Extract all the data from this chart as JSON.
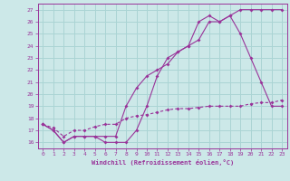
{
  "xlabel": "Windchill (Refroidissement éolien,°C)",
  "bg_color": "#cce8e8",
  "grid_color": "#aad4d4",
  "line_color": "#993399",
  "x_ticks": [
    0,
    1,
    2,
    3,
    4,
    5,
    6,
    7,
    8,
    9,
    10,
    11,
    12,
    13,
    14,
    15,
    16,
    17,
    18,
    19,
    20,
    21,
    22,
    23
  ],
  "y_ticks": [
    16,
    17,
    18,
    19,
    20,
    21,
    22,
    23,
    24,
    25,
    26,
    27
  ],
  "xlim": [
    -0.5,
    23.5
  ],
  "ylim": [
    15.5,
    27.5
  ],
  "line1_x": [
    0,
    1,
    2,
    3,
    4,
    5,
    6,
    7,
    8,
    9,
    10,
    11,
    12,
    13,
    14,
    15,
    16,
    17,
    18,
    19,
    20,
    21,
    22,
    23
  ],
  "line1_y": [
    17.5,
    17.0,
    16.0,
    16.5,
    16.5,
    16.5,
    16.0,
    16.0,
    16.0,
    17.0,
    19.0,
    21.5,
    23.0,
    23.5,
    24.0,
    24.5,
    26.0,
    26.0,
    26.5,
    25.0,
    23.0,
    21.0,
    19.0,
    19.0
  ],
  "line2_x": [
    0,
    1,
    2,
    3,
    4,
    5,
    6,
    7,
    8,
    9,
    10,
    11,
    12,
    13,
    14,
    15,
    16,
    17,
    18,
    19,
    20,
    21,
    22,
    23
  ],
  "line2_y": [
    17.5,
    17.0,
    16.0,
    16.5,
    16.5,
    16.5,
    16.5,
    16.5,
    19.0,
    20.5,
    21.5,
    22.0,
    22.5,
    23.5,
    24.0,
    26.0,
    26.5,
    26.0,
    26.5,
    27.0,
    27.0,
    27.0,
    27.0,
    27.0
  ],
  "line3_x": [
    0,
    1,
    2,
    3,
    4,
    5,
    6,
    7,
    8,
    9,
    10,
    11,
    12,
    13,
    14,
    15,
    16,
    17,
    18,
    19,
    20,
    21,
    22,
    23
  ],
  "line3_y": [
    17.5,
    17.2,
    16.5,
    17.0,
    17.0,
    17.3,
    17.5,
    17.5,
    18.0,
    18.2,
    18.3,
    18.5,
    18.7,
    18.8,
    18.8,
    18.9,
    19.0,
    19.0,
    19.0,
    19.0,
    19.2,
    19.3,
    19.3,
    19.5
  ]
}
